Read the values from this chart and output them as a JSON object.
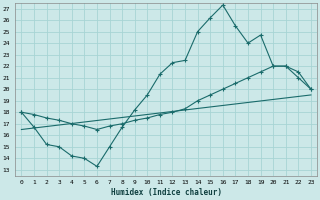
{
  "xlabel": "Humidex (Indice chaleur)",
  "bg_color": "#cce8e8",
  "grid_color": "#a8d4d4",
  "line_color": "#1a6b6b",
  "xlim": [
    -0.5,
    23.5
  ],
  "ylim": [
    12.5,
    27.5
  ],
  "xticks": [
    0,
    1,
    2,
    3,
    4,
    5,
    6,
    7,
    8,
    9,
    10,
    11,
    12,
    13,
    14,
    15,
    16,
    17,
    18,
    19,
    20,
    21,
    22,
    23
  ],
  "yticks": [
    13,
    14,
    15,
    16,
    17,
    18,
    19,
    20,
    21,
    22,
    23,
    24,
    25,
    26,
    27
  ],
  "line1_x": [
    0,
    1,
    2,
    3,
    4,
    5,
    6,
    7,
    8,
    9,
    10,
    11,
    12,
    13,
    14,
    15,
    16,
    17,
    18,
    19,
    20,
    21,
    22,
    23
  ],
  "line1_y": [
    18,
    16.7,
    15.2,
    15.0,
    14.2,
    14.0,
    13.3,
    15.0,
    16.7,
    18.2,
    19.5,
    21.3,
    22.3,
    22.5,
    25.0,
    26.2,
    27.3,
    25.5,
    24.0,
    24.7,
    22.0,
    22.0,
    21.0,
    20.0
  ],
  "line2_x": [
    0,
    1,
    2,
    3,
    4,
    5,
    6,
    7,
    8,
    9,
    10,
    11,
    12,
    13,
    14,
    15,
    16,
    17,
    18,
    19,
    20,
    21,
    22,
    23
  ],
  "line2_y": [
    18,
    17.8,
    17.5,
    17.3,
    17.0,
    16.8,
    16.5,
    16.8,
    17.0,
    17.3,
    17.5,
    17.8,
    18.0,
    18.3,
    19.0,
    19.5,
    20.0,
    20.5,
    21.0,
    21.5,
    22.0,
    22.0,
    21.5,
    20.0
  ],
  "line3_x": [
    0,
    23
  ],
  "line3_y": [
    16.5,
    19.5
  ]
}
